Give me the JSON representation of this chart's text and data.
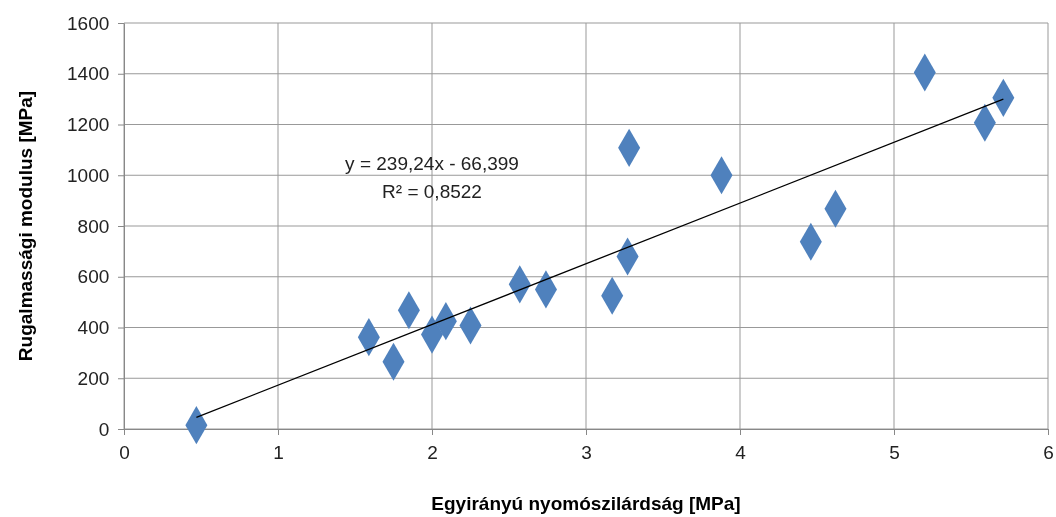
{
  "chart_data": {
    "type": "scatter",
    "xlabel": "Egyirányú nyomószilárdság [MPa]",
    "ylabel": "Rugalmassági modulus  [MPa]",
    "xlim": [
      0,
      6
    ],
    "xticks": [
      0,
      1,
      2,
      3,
      4,
      5,
      6
    ],
    "ylim": [
      0,
      1600
    ],
    "yticks": [
      0,
      200,
      400,
      600,
      800,
      1000,
      1200,
      1400,
      1600
    ],
    "grid": true,
    "marker": "diamond",
    "series": [
      {
        "color": "#4f81bd",
        "x": [
          0.47,
          1.59,
          1.75,
          1.85,
          2.0,
          2.09,
          2.25,
          2.57,
          2.74,
          3.17,
          3.27,
          3.28,
          3.88,
          4.46,
          4.62,
          5.2,
          5.59,
          5.71
        ],
        "values": [
          15,
          362,
          265,
          468,
          372,
          425,
          408,
          570,
          550,
          525,
          680,
          1108,
          1000,
          738,
          868,
          1405,
          1207,
          1305
        ]
      },
      {
        "type": "line",
        "color": "#000000",
        "x": [
          0.47,
          5.71
        ],
        "values": [
          46.0,
          1299.6
        ],
        "marker": "none"
      }
    ],
    "annotations": [
      "y = 239,24x - 66,399",
      "R² = 0,8522"
    ]
  }
}
